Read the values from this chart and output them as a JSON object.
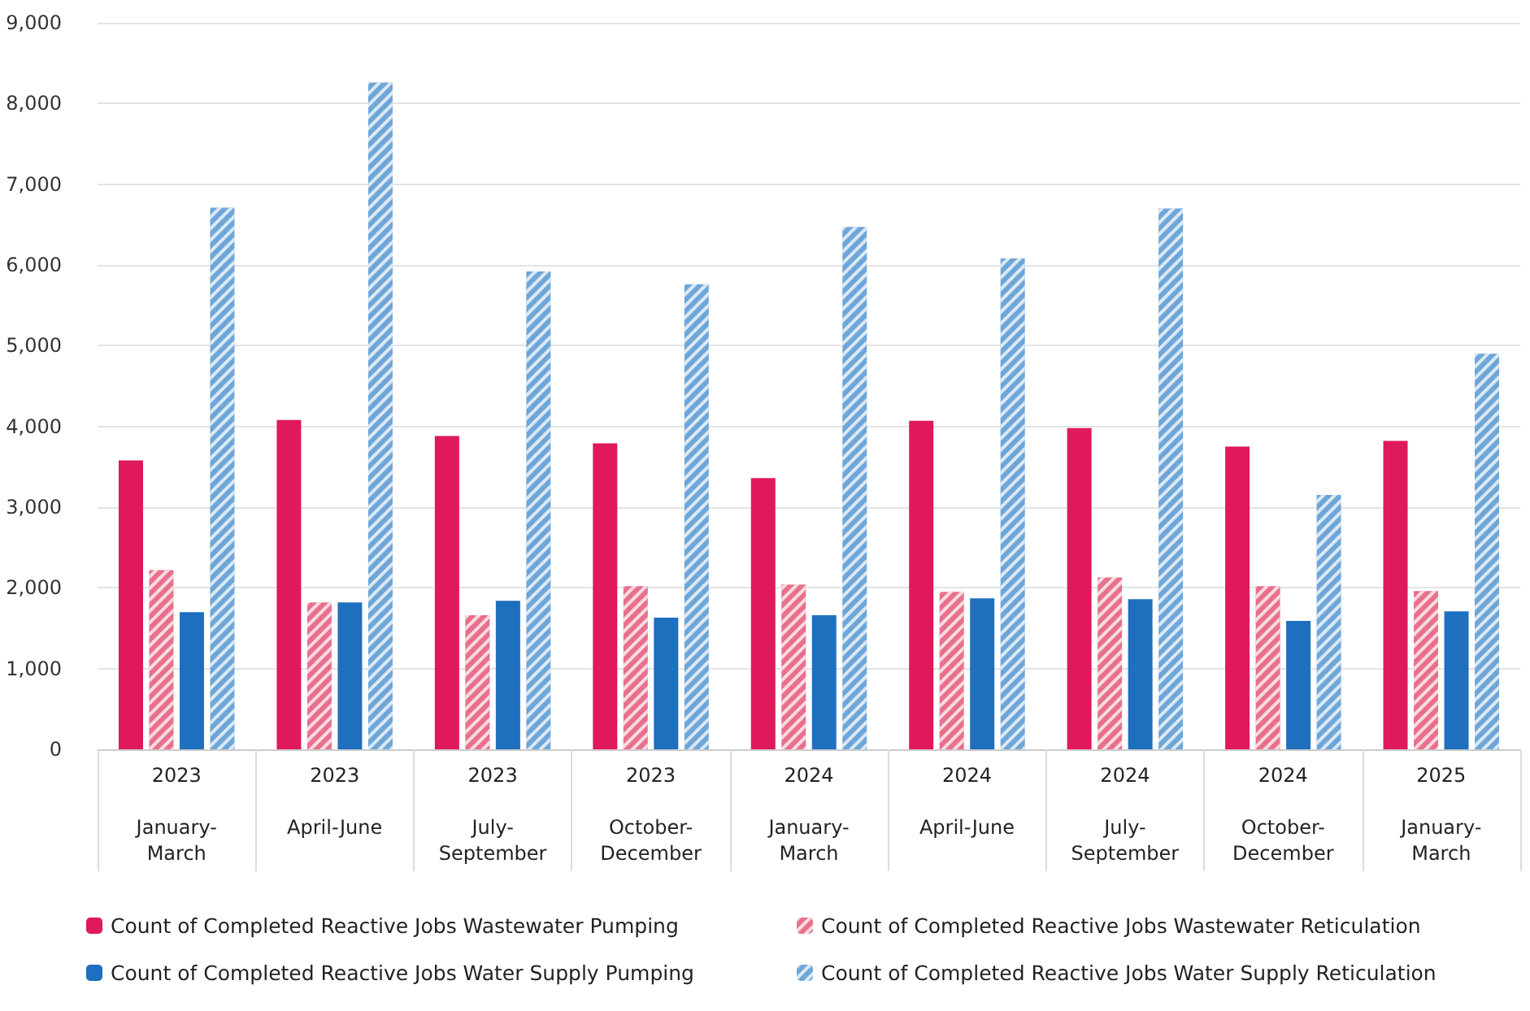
{
  "chart_data": {
    "type": "bar",
    "categories": [
      "2023\nJanuary-March",
      "2023\nApril-June",
      "2023\nJuly-September",
      "2023\nOctober-December",
      "2024\nJanuary-March",
      "2024\nApril-June",
      "2024\nJuly-September",
      "2024\nOctober-December",
      "2025\nJanuary-March"
    ],
    "series": [
      {
        "name": "Count of Completed Reactive Jobs Wastewater Pumping",
        "color": "#e0195a",
        "values": [
          3580,
          4080,
          3880,
          3790,
          3360,
          4070,
          3980,
          3750,
          3820
        ]
      },
      {
        "name": "Count of Completed Reactive Jobs Wastewater Reticulation",
        "color": "#e8708c",
        "values": [
          2220,
          1820,
          1660,
          2020,
          2040,
          1950,
          2130,
          2020,
          1960
        ]
      },
      {
        "name": "Count of Completed Reactive Jobs Water Supply Pumping",
        "color": "#1f6fbf",
        "values": [
          1700,
          1820,
          1840,
          1630,
          1660,
          1870,
          1860,
          1590,
          1710
        ]
      },
      {
        "name": "Count of Completed Reactive Jobs Water Supply Reticulation",
        "color": "#6fa6d8",
        "values": [
          6710,
          8260,
          5920,
          5760,
          6470,
          6080,
          6700,
          3150,
          4900
        ]
      }
    ],
    "ylim": [
      0,
      9000
    ],
    "yticks": [
      0,
      {
        "value": 1000,
        "label": "1,000"
      },
      {
        "value": 2000,
        "label": "2,000"
      },
      {
        "value": 3000,
        "label": "3,000"
      },
      {
        "value": 4000,
        "label": "4,000"
      },
      {
        "value": 5000,
        "label": "5,000"
      },
      {
        "value": 6000,
        "label": "6,000"
      },
      {
        "value": 7000,
        "label": "7,000"
      },
      {
        "value": 8000,
        "label": "8,000"
      },
      {
        "value": 9000,
        "label": "9,000"
      }
    ],
    "grid": "y",
    "legend": "bottom"
  }
}
